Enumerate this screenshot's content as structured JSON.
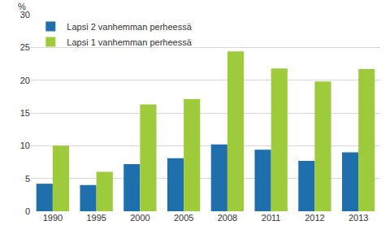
{
  "chart_data": {
    "type": "bar",
    "y_label": "%",
    "categories": [
      "1990",
      "1995",
      "2000",
      "2005",
      "2008",
      "2011",
      "2012",
      "2013"
    ],
    "series": [
      {
        "name": "Lapsi 2 vanhemman perheessä",
        "color": "#1f6fad",
        "values": [
          4.2,
          4.0,
          7.2,
          8.1,
          10.2,
          9.4,
          7.7,
          9.0
        ]
      },
      {
        "name": "Lapsi 1 vanhemman perheessä",
        "color": "#9dcb3b",
        "values": [
          10.0,
          6.0,
          16.3,
          17.1,
          24.4,
          21.8,
          19.8,
          21.7
        ]
      }
    ],
    "ylim": [
      0,
      30
    ],
    "yticks": [
      0,
      5,
      10,
      15,
      20,
      25,
      30
    ],
    "grid": true,
    "legend": "top-left"
  }
}
